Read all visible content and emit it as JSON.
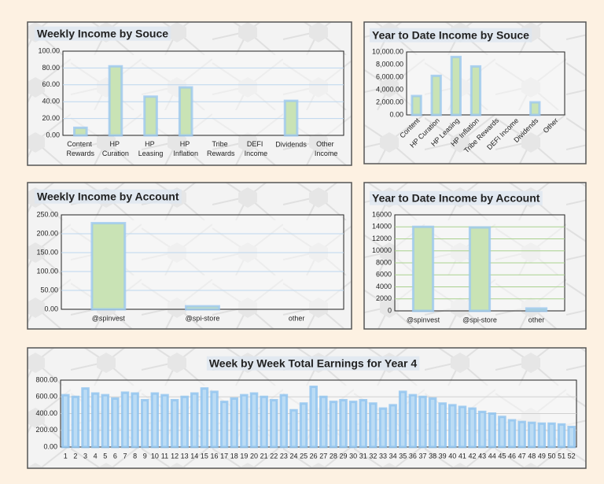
{
  "chart_data": [
    {
      "type": "bar",
      "title": "Weekly Income by Souce",
      "categories": [
        "Content Rewards",
        "HP Curation",
        "HP Leasing",
        "HP Inflation",
        "Tribe Rewards",
        "DEFI Income",
        "Dividends",
        "Other Income"
      ],
      "values": [
        9,
        82,
        46,
        57,
        0,
        0,
        41,
        0
      ],
      "color": "#c9e3b5",
      "glow": "#9cc8f0",
      "ylim": [
        0,
        100
      ],
      "yticks": [
        {
          "value": 0,
          "label": "0.00"
        },
        {
          "value": 20,
          "label": "20.00"
        },
        {
          "value": 40,
          "label": "40.00"
        },
        {
          "value": 60,
          "label": "60.00"
        },
        {
          "value": 80,
          "label": "80.00"
        },
        {
          "value": 100,
          "label": "100.00"
        }
      ],
      "grid": true,
      "grid_color": "#bcd6ee",
      "title_color": "#2e75b6"
    },
    {
      "type": "bar",
      "title": "Year to Date Income by Souce",
      "categories": [
        "Content",
        "HP Curation",
        "HP Leasing",
        "HP Inflation",
        "Tribe Rewards",
        "DEFI Income",
        "Dividends",
        "Other"
      ],
      "values": [
        3000,
        6200,
        9200,
        7700,
        0,
        0,
        2000,
        0
      ],
      "color": "#c9e3b5",
      "glow": "#9cc8f0",
      "ylim": [
        0,
        10000
      ],
      "yticks": [
        {
          "value": 0,
          "label": "0.00"
        },
        {
          "value": 2000,
          "label": "2,000.00"
        },
        {
          "value": 4000,
          "label": "4,000.00"
        },
        {
          "value": 6000,
          "label": "6,000.00"
        },
        {
          "value": 8000,
          "label": "8,000.00"
        },
        {
          "value": 10000,
          "label": "10,000.00"
        }
      ],
      "grid": false,
      "grid_color": "#bcd6ee",
      "title_color": "#548235",
      "rotate_labels": true
    },
    {
      "type": "bar",
      "title": "Weekly Income by Account",
      "categories": [
        "@spinvest",
        "@spi-store",
        "other"
      ],
      "values": [
        228,
        8,
        0
      ],
      "color": "#c9e3b5",
      "glow": "#9cc8f0",
      "ylim": [
        0,
        250
      ],
      "yticks": [
        {
          "value": 0,
          "label": "0.00"
        },
        {
          "value": 50,
          "label": "50.00"
        },
        {
          "value": 100,
          "label": "100.00"
        },
        {
          "value": 150,
          "label": "150.00"
        },
        {
          "value": 200,
          "label": "200.00"
        },
        {
          "value": 250,
          "label": "250.00"
        }
      ],
      "grid": true,
      "grid_color": "#bcd6ee",
      "title_color": "#2e75b6"
    },
    {
      "type": "bar",
      "title": "Year to Date Income by Account",
      "categories": [
        "@spinvest",
        "@spi-store",
        "other"
      ],
      "values": [
        14000,
        13900,
        400
      ],
      "color": "#c9e3b5",
      "glow": "#9cc8f0",
      "ylim": [
        0,
        16000
      ],
      "yticks": [
        0,
        2000,
        4000,
        6000,
        8000,
        10000,
        12000,
        14000,
        16000
      ],
      "grid": true,
      "grid_color": "#a9d18e",
      "title_color": "#548235"
    },
    {
      "type": "bar",
      "title": "Week by Week Total Earnings for Year 4",
      "categories": [
        1,
        2,
        3,
        4,
        5,
        6,
        7,
        8,
        9,
        10,
        11,
        12,
        13,
        14,
        15,
        16,
        17,
        18,
        19,
        20,
        21,
        22,
        23,
        24,
        25,
        26,
        27,
        28,
        29,
        30,
        31,
        32,
        33,
        34,
        35,
        36,
        37,
        38,
        39,
        40,
        41,
        42,
        43,
        44,
        45,
        46,
        47,
        48,
        49,
        50,
        51,
        52
      ],
      "values": [
        620,
        600,
        700,
        640,
        620,
        580,
        650,
        640,
        560,
        640,
        620,
        560,
        600,
        640,
        700,
        660,
        540,
        580,
        620,
        640,
        600,
        560,
        620,
        440,
        520,
        720,
        600,
        540,
        560,
        540,
        560,
        520,
        460,
        500,
        660,
        620,
        600,
        580,
        520,
        500,
        480,
        460,
        420,
        400,
        360,
        320,
        300,
        290,
        280,
        280,
        270,
        240
      ],
      "color": "#bcdcf4",
      "glow": "#8ec3ef",
      "ylim": [
        0,
        800
      ],
      "yticks": [
        {
          "value": 0,
          "label": "0.00"
        },
        {
          "value": 200,
          "label": "200.00"
        },
        {
          "value": 400,
          "label": "400.00"
        },
        {
          "value": 600,
          "label": "600.00"
        },
        {
          "value": 800,
          "label": "800.00"
        }
      ],
      "grid": true,
      "grid_color": "#d0d0d0",
      "title_color": "#2e75b6"
    }
  ]
}
